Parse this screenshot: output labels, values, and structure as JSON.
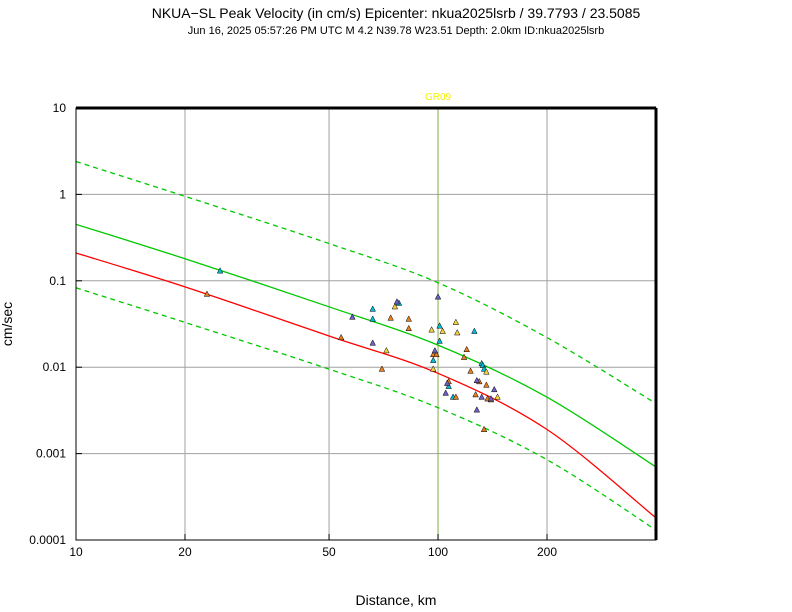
{
  "header": {
    "title": "NKUA−SL Peak Velocity (in cm/s) Epicenter: nkua2025lsrb / 39.7793 / 23.5085",
    "subtitle": "Jun 16, 2025 05:57:26 PM UTC   M 4.2   N39.78 W23.51   Depth: 2.0km   ID:nkua2025lsrb"
  },
  "chart_data": {
    "type": "scatter",
    "x_scale": "log",
    "y_scale": "log",
    "xlim": [
      10,
      400
    ],
    "ylim": [
      0.0001,
      10
    ],
    "xlabel": "Distance, km",
    "ylabel": "cm/sec",
    "x_ticks": [
      {
        "value": 10,
        "label": "10"
      },
      {
        "value": 20,
        "label": "20"
      },
      {
        "value": 50,
        "label": "50"
      },
      {
        "value": 100,
        "label": "100"
      },
      {
        "value": 200,
        "label": "200"
      }
    ],
    "y_ticks": [
      {
        "value": 0.0001,
        "label": "0.0001"
      },
      {
        "value": 0.001,
        "label": "0.001"
      },
      {
        "value": 0.01,
        "label": "0.01"
      },
      {
        "value": 0.1,
        "label": "0.1"
      },
      {
        "value": 1,
        "label": "1"
      },
      {
        "value": 10,
        "label": "10"
      }
    ],
    "grid": true,
    "vertical_marker": {
      "x": 100,
      "label": "GR09",
      "color": "#f2f200",
      "line_color": "#8fb050"
    },
    "curves": [
      {
        "style": "solid",
        "color": "#00c800",
        "points": [
          [
            10,
            0.45
          ],
          [
            20,
            0.18
          ],
          [
            50,
            0.05
          ],
          [
            100,
            0.018
          ],
          [
            200,
            0.0045
          ],
          [
            400,
            0.0007
          ]
        ]
      },
      {
        "style": "dashed",
        "color": "#00c800",
        "points": [
          [
            10,
            2.4
          ],
          [
            20,
            0.95
          ],
          [
            50,
            0.27
          ],
          [
            100,
            0.095
          ],
          [
            200,
            0.022
          ],
          [
            400,
            0.0038
          ]
        ]
      },
      {
        "style": "dashed",
        "color": "#00c800",
        "points": [
          [
            10,
            0.083
          ],
          [
            20,
            0.033
          ],
          [
            50,
            0.0095
          ],
          [
            100,
            0.0034
          ],
          [
            200,
            0.00085
          ],
          [
            400,
            0.00013
          ]
        ]
      },
      {
        "style": "solid",
        "color": "#ff0000",
        "points": [
          [
            10,
            0.21
          ],
          [
            20,
            0.085
          ],
          [
            50,
            0.023
          ],
          [
            100,
            0.0085
          ],
          [
            200,
            0.0019
          ],
          [
            400,
            0.00018
          ]
        ]
      }
    ],
    "series": [
      {
        "color": "#00bcd4",
        "points": [
          [
            25,
            0.13
          ],
          [
            66,
            0.047
          ],
          [
            66,
            0.036
          ],
          [
            78,
            0.055
          ],
          [
            97,
            0.012
          ],
          [
            101,
            0.03
          ],
          [
            101,
            0.02
          ],
          [
            107,
            0.006
          ],
          [
            110,
            0.0045
          ],
          [
            126,
            0.026
          ],
          [
            132,
            0.011
          ],
          [
            133,
            0.0105
          ],
          [
            134,
            0.0095
          ]
        ]
      },
      {
        "color": "#f4d03f",
        "points": [
          [
            72,
            0.0155
          ],
          [
            76,
            0.05
          ],
          [
            96,
            0.027
          ],
          [
            97,
            0.0095
          ],
          [
            103,
            0.026
          ],
          [
            112,
            0.033
          ],
          [
            113,
            0.025
          ],
          [
            136,
            0.0088
          ],
          [
            140,
            0.0042
          ],
          [
            146,
            0.0045
          ]
        ]
      },
      {
        "color": "#e67e22",
        "points": [
          [
            23,
            0.07
          ],
          [
            54,
            0.022
          ],
          [
            70,
            0.0095
          ],
          [
            74,
            0.037
          ],
          [
            83,
            0.036
          ],
          [
            83,
            0.028
          ],
          [
            97,
            0.014
          ],
          [
            99,
            0.014
          ],
          [
            107,
            0.0068
          ],
          [
            112,
            0.0045
          ],
          [
            118,
            0.013
          ],
          [
            120,
            0.016
          ],
          [
            123,
            0.009
          ],
          [
            127,
            0.0048
          ],
          [
            130,
            0.0068
          ],
          [
            134,
            0.0019
          ],
          [
            136,
            0.0062
          ],
          [
            137,
            0.0043
          ]
        ]
      },
      {
        "color": "#6c5fc7",
        "points": [
          [
            58,
            0.038
          ],
          [
            66,
            0.019
          ],
          [
            77,
            0.057
          ],
          [
            98,
            0.0155
          ],
          [
            100,
            0.065
          ],
          [
            105,
            0.005
          ],
          [
            106,
            0.0065
          ],
          [
            128,
            0.007
          ],
          [
            128,
            0.0032
          ],
          [
            132,
            0.0045
          ],
          [
            140,
            0.0043
          ],
          [
            143,
            0.0055
          ]
        ]
      }
    ]
  }
}
